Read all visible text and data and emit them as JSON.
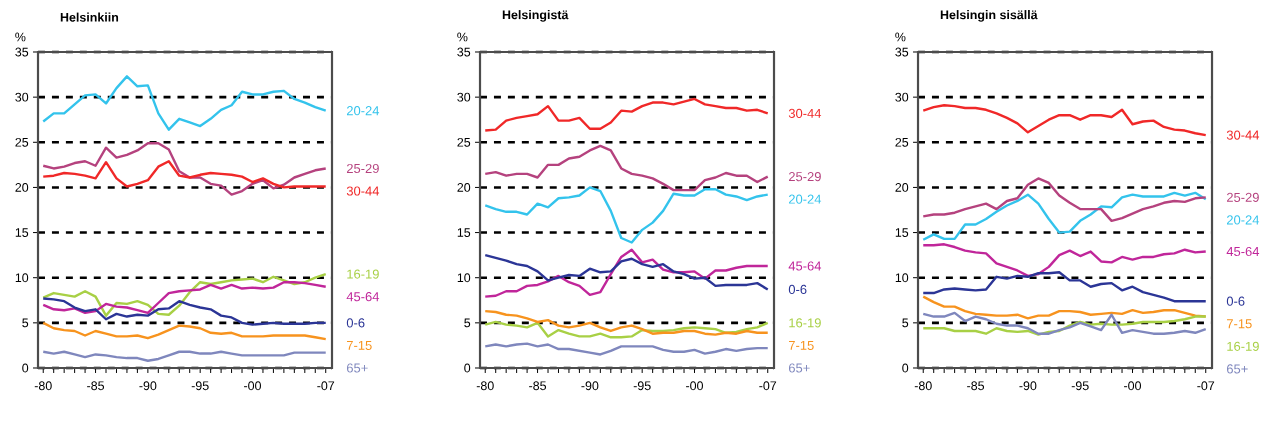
{
  "chart_data": [
    {
      "type": "line",
      "title": "Helsinkiin",
      "ylabel": "%",
      "categories": [
        "-80",
        null,
        null,
        null,
        null,
        "-85",
        null,
        null,
        null,
        null,
        "-90",
        null,
        null,
        null,
        null,
        "-95",
        null,
        null,
        null,
        null,
        "-00",
        null,
        null,
        null,
        null,
        null,
        null,
        "-07"
      ],
      "ylim": [
        0,
        35
      ],
      "yticks": [
        0,
        5,
        10,
        15,
        20,
        25,
        30,
        35
      ],
      "grid": "y",
      "series": [
        {
          "name": "20-24",
          "color": "#33c3ec",
          "values": [
            27.3,
            28.2,
            28.2,
            29.2,
            30.2,
            30.3,
            29.3,
            31.0,
            32.3,
            31.2,
            31.3,
            28.2,
            26.4,
            27.6,
            27.2,
            26.8,
            27.6,
            28.6,
            29.1,
            30.6,
            30.3,
            30.3,
            30.6,
            30.7,
            29.8,
            29.4,
            28.9,
            28.5
          ]
        },
        {
          "name": "25-29",
          "color": "#b5427e",
          "values": [
            22.4,
            22.1,
            22.3,
            22.7,
            22.9,
            22.4,
            24.4,
            23.3,
            23.6,
            24.1,
            24.9,
            24.9,
            24.2,
            21.8,
            21.1,
            21.1,
            20.4,
            20.2,
            19.2,
            19.6,
            20.4,
            20.8,
            19.9,
            20.3,
            21.1,
            21.5,
            21.9,
            22.1
          ]
        },
        {
          "name": "30-44",
          "color": "#f02828",
          "values": [
            21.2,
            21.3,
            21.6,
            21.5,
            21.3,
            21.0,
            22.8,
            21.0,
            20.1,
            20.4,
            20.8,
            22.3,
            22.9,
            21.3,
            21.1,
            21.4,
            21.6,
            21.5,
            21.4,
            21.2,
            20.6,
            21.0,
            20.4,
            20.0,
            20.1,
            20.1,
            20.1,
            20.1
          ]
        },
        {
          "name": "16-19",
          "color": "#a8d045",
          "values": [
            7.8,
            8.3,
            8.1,
            7.9,
            8.5,
            7.9,
            5.8,
            7.2,
            7.1,
            7.4,
            7.0,
            6.0,
            5.9,
            6.9,
            8.4,
            9.5,
            9.3,
            9.5,
            9.7,
            9.8,
            9.9,
            9.5,
            10.1,
            9.7,
            9.3,
            9.5,
            10.0,
            10.4
          ]
        },
        {
          "name": "45-64",
          "color": "#c0269a",
          "values": [
            7.0,
            6.5,
            6.4,
            6.6,
            6.1,
            6.3,
            7.1,
            6.8,
            6.7,
            6.4,
            6.1,
            7.2,
            8.3,
            8.5,
            8.6,
            8.7,
            9.2,
            8.8,
            9.2,
            8.8,
            8.9,
            8.8,
            8.9,
            9.5,
            9.5,
            9.4,
            9.2,
            9.0
          ]
        },
        {
          "name": "0-6",
          "color": "#2b3596",
          "values": [
            7.7,
            7.6,
            7.4,
            6.7,
            6.3,
            6.5,
            5.4,
            6.0,
            5.7,
            5.9,
            5.8,
            6.5,
            6.6,
            7.4,
            7.0,
            6.7,
            6.5,
            5.8,
            5.6,
            5.0,
            4.8,
            4.9,
            5.0,
            4.9,
            4.9,
            4.9,
            5.0,
            5.0
          ]
        },
        {
          "name": "7-15",
          "color": "#f7931e",
          "values": [
            5.0,
            4.4,
            4.2,
            4.1,
            3.6,
            4.1,
            3.8,
            3.5,
            3.5,
            3.6,
            3.3,
            3.7,
            4.2,
            4.7,
            4.6,
            4.4,
            3.9,
            3.8,
            3.9,
            3.5,
            3.5,
            3.5,
            3.6,
            3.6,
            3.6,
            3.6,
            3.4,
            3.2
          ]
        },
        {
          "name": "65+",
          "color": "#7f87bd",
          "values": [
            1.8,
            1.6,
            1.8,
            1.5,
            1.2,
            1.5,
            1.4,
            1.2,
            1.1,
            1.1,
            0.8,
            1.0,
            1.4,
            1.8,
            1.8,
            1.6,
            1.6,
            1.8,
            1.6,
            1.4,
            1.4,
            1.4,
            1.4,
            1.4,
            1.7,
            1.7,
            1.7,
            1.7
          ]
        }
      ]
    },
    {
      "type": "line",
      "title": "Helsingistä",
      "ylabel": "%",
      "categories": [
        "-80",
        null,
        null,
        null,
        null,
        "-85",
        null,
        null,
        null,
        null,
        "-90",
        null,
        null,
        null,
        null,
        "-95",
        null,
        null,
        null,
        null,
        "-00",
        null,
        null,
        null,
        null,
        null,
        null,
        "-07"
      ],
      "ylim": [
        0,
        35
      ],
      "yticks": [
        0,
        5,
        10,
        15,
        20,
        25,
        30,
        35
      ],
      "grid": "y",
      "series": [
        {
          "name": "30-44",
          "color": "#f02828",
          "values": [
            26.3,
            26.4,
            27.4,
            27.7,
            27.9,
            28.1,
            29.0,
            27.4,
            27.4,
            27.7,
            26.5,
            26.5,
            27.2,
            28.5,
            28.4,
            29.0,
            29.4,
            29.4,
            29.2,
            29.5,
            29.8,
            29.2,
            29.0,
            28.8,
            28.8,
            28.5,
            28.6,
            28.2
          ]
        },
        {
          "name": "25-29",
          "color": "#b5427e",
          "values": [
            21.5,
            21.7,
            21.3,
            21.5,
            21.5,
            21.1,
            22.5,
            22.5,
            23.2,
            23.4,
            24.1,
            24.6,
            24.1,
            22.1,
            21.5,
            21.3,
            21.0,
            20.4,
            19.7,
            19.7,
            19.7,
            20.8,
            21.1,
            21.6,
            21.3,
            21.3,
            20.6,
            21.2
          ]
        },
        {
          "name": "20-24",
          "color": "#33c3ec",
          "values": [
            18.0,
            17.6,
            17.3,
            17.3,
            17.0,
            18.2,
            17.8,
            18.8,
            18.9,
            19.1,
            20.0,
            19.6,
            17.4,
            14.4,
            13.9,
            15.3,
            16.1,
            17.4,
            19.3,
            19.1,
            19.1,
            19.8,
            19.8,
            19.2,
            19.0,
            18.6,
            19.0,
            19.2
          ]
        },
        {
          "name": "45-64",
          "color": "#c0269a",
          "values": [
            7.9,
            8.0,
            8.5,
            8.5,
            9.1,
            9.2,
            9.6,
            10.2,
            9.5,
            9.1,
            8.1,
            8.4,
            10.4,
            12.3,
            13.1,
            11.7,
            12.0,
            10.9,
            10.6,
            10.6,
            10.7,
            9.9,
            10.8,
            10.8,
            11.1,
            11.3,
            11.3,
            11.3
          ]
        },
        {
          "name": "0-6",
          "color": "#2b3596",
          "values": [
            12.5,
            12.2,
            11.9,
            11.5,
            11.3,
            10.7,
            9.7,
            10.0,
            10.3,
            10.2,
            11.0,
            10.6,
            10.7,
            11.8,
            12.1,
            11.5,
            11.2,
            11.5,
            10.7,
            10.4,
            9.9,
            10.0,
            9.1,
            9.2,
            9.2,
            9.2,
            9.4,
            8.7
          ]
        },
        {
          "name": "16-19",
          "color": "#a8d045",
          "values": [
            4.8,
            5.1,
            4.8,
            4.7,
            4.5,
            5.0,
            3.5,
            4.2,
            3.8,
            3.5,
            3.5,
            3.8,
            3.4,
            3.4,
            3.5,
            4.2,
            4.1,
            4.1,
            4.2,
            4.4,
            4.5,
            4.4,
            4.3,
            3.9,
            4.0,
            4.3,
            4.5,
            5.0
          ]
        },
        {
          "name": "7-15",
          "color": "#f7931e",
          "values": [
            6.3,
            6.2,
            5.9,
            5.8,
            5.5,
            5.1,
            5.3,
            4.7,
            4.5,
            4.7,
            5.0,
            4.5,
            4.1,
            4.5,
            4.7,
            4.3,
            3.8,
            3.9,
            3.9,
            4.1,
            4.1,
            3.8,
            3.7,
            3.9,
            3.8,
            4.1,
            3.9,
            3.9
          ]
        },
        {
          "name": "65+",
          "color": "#7f87bd",
          "values": [
            2.4,
            2.6,
            2.4,
            2.6,
            2.7,
            2.4,
            2.6,
            2.1,
            2.1,
            1.9,
            1.7,
            1.5,
            1.9,
            2.4,
            2.4,
            2.4,
            2.4,
            2.0,
            1.8,
            1.8,
            2.0,
            1.6,
            1.8,
            2.1,
            1.9,
            2.1,
            2.2,
            2.2
          ]
        }
      ]
    },
    {
      "type": "line",
      "title": "Helsingin sisällä",
      "ylabel": "%",
      "categories": [
        "-80",
        null,
        null,
        null,
        null,
        "-85",
        null,
        null,
        null,
        null,
        "-90",
        null,
        null,
        null,
        null,
        "-95",
        null,
        null,
        null,
        null,
        "-00",
        null,
        null,
        null,
        null,
        null,
        null,
        "-07"
      ],
      "ylim": [
        0,
        35
      ],
      "yticks": [
        0,
        5,
        10,
        15,
        20,
        25,
        30,
        35
      ],
      "grid": "y",
      "series": [
        {
          "name": "30-44",
          "color": "#f02828",
          "values": [
            28.5,
            28.9,
            29.1,
            29.0,
            28.8,
            28.8,
            28.6,
            28.2,
            27.7,
            27.1,
            26.1,
            26.8,
            27.5,
            28.0,
            28.0,
            27.5,
            28.0,
            28.0,
            27.8,
            28.6,
            27.0,
            27.3,
            27.4,
            26.7,
            26.4,
            26.3,
            26.0,
            25.8
          ]
        },
        {
          "name": "20-24",
          "color": "#33c3ec",
          "values": [
            14.2,
            14.8,
            14.3,
            14.3,
            15.9,
            15.9,
            16.5,
            17.3,
            18.0,
            18.5,
            19.2,
            18.2,
            16.5,
            15.0,
            15.1,
            16.3,
            17.0,
            17.9,
            17.8,
            18.9,
            19.2,
            19.0,
            19.0,
            19.0,
            19.4,
            19.1,
            19.4,
            18.7
          ]
        },
        {
          "name": "25-29",
          "color": "#b5427e",
          "values": [
            16.8,
            17.0,
            17.0,
            17.2,
            17.6,
            17.9,
            18.2,
            17.6,
            18.5,
            18.8,
            20.3,
            21.0,
            20.5,
            19.1,
            18.3,
            17.6,
            17.6,
            17.6,
            16.3,
            16.6,
            17.1,
            17.6,
            17.9,
            18.3,
            18.5,
            18.4,
            18.8,
            18.9
          ]
        },
        {
          "name": "45-64",
          "color": "#c0269a",
          "values": [
            13.6,
            13.6,
            13.7,
            13.4,
            13.0,
            12.8,
            12.7,
            11.6,
            11.2,
            10.8,
            10.2,
            10.4,
            11.2,
            12.5,
            13.0,
            12.4,
            12.9,
            11.8,
            11.7,
            12.3,
            12.0,
            12.3,
            12.3,
            12.6,
            12.7,
            13.1,
            12.8,
            12.9
          ]
        },
        {
          "name": "0-6",
          "color": "#2b3596",
          "values": [
            8.3,
            8.3,
            8.7,
            8.8,
            8.7,
            8.6,
            8.7,
            10.1,
            9.9,
            10.2,
            10.1,
            10.5,
            10.5,
            10.6,
            9.7,
            9.7,
            9.0,
            9.3,
            9.4,
            8.6,
            9.0,
            8.4,
            8.1,
            7.8,
            7.4,
            7.4,
            7.4,
            7.4
          ]
        },
        {
          "name": "7-15",
          "color": "#f7931e",
          "values": [
            7.9,
            7.3,
            6.8,
            6.8,
            6.3,
            6.0,
            5.9,
            5.8,
            5.8,
            5.9,
            5.5,
            5.8,
            5.8,
            6.3,
            6.3,
            6.2,
            5.9,
            6.0,
            6.1,
            6.0,
            6.4,
            6.1,
            6.2,
            6.4,
            6.4,
            6.1,
            5.8,
            5.7
          ]
        },
        {
          "name": "16-19",
          "color": "#a8d045",
          "values": [
            4.4,
            4.4,
            4.4,
            4.1,
            4.1,
            4.1,
            3.8,
            4.4,
            4.1,
            4.0,
            4.1,
            3.7,
            4.0,
            4.1,
            4.7,
            5.1,
            4.8,
            4.9,
            4.8,
            4.8,
            4.9,
            5.1,
            5.1,
            5.1,
            5.2,
            5.4,
            5.7,
            5.7
          ]
        },
        {
          "name": "65+",
          "color": "#7f87bd",
          "values": [
            6.0,
            5.7,
            5.7,
            6.1,
            5.2,
            5.7,
            5.4,
            4.9,
            4.7,
            4.7,
            4.4,
            3.8,
            3.8,
            4.2,
            4.5,
            5.0,
            4.6,
            4.2,
            5.9,
            3.9,
            4.2,
            4.0,
            3.8,
            3.8,
            3.9,
            4.1,
            3.9,
            4.3
          ]
        }
      ]
    }
  ]
}
